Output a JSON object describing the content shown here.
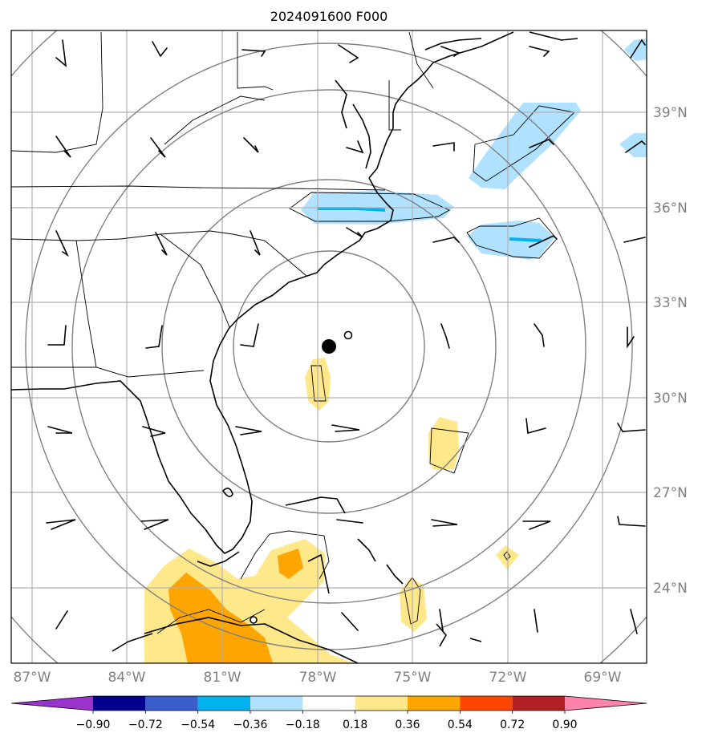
{
  "map": {
    "title": "2024091600 F000",
    "lon_labels": [
      "87°W",
      "84°W",
      "81°W",
      "78°W",
      "75°W",
      "72°W",
      "69°W"
    ],
    "lat_labels": [
      "39°N",
      "36°N",
      "33°N",
      "30°N",
      "27°N",
      "24°N"
    ],
    "colorbar": {
      "ticks": [
        "−0.90",
        "−0.72",
        "−0.54",
        "−0.36",
        "−0.18",
        "0.18",
        "0.36",
        "0.54",
        "0.72",
        "0.90"
      ],
      "colors": [
        "#9933cc",
        "#00008b",
        "#3a5fcd",
        "#00b2ee",
        "#b0e2ff",
        "#ffffff",
        "#ffe88a",
        "#ffa500",
        "#ff4500",
        "#b22222",
        "#ff82ab"
      ]
    },
    "colors": {
      "light_blue": "#b0e2ff",
      "mid_blue": "#00b2ee",
      "light_yellow": "#ffe88a",
      "orange": "#ffa500"
    },
    "markers": {
      "storm_center": "filled-circle",
      "secondary_center": "open-circle"
    }
  }
}
